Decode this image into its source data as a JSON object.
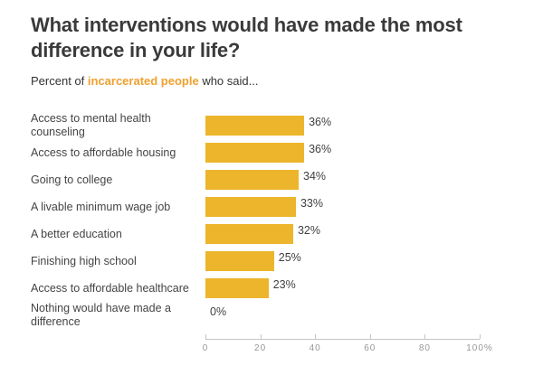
{
  "header": {
    "title": "What interventions would have made the most difference in your life?",
    "subtitle_prefix": "Percent of ",
    "subtitle_highlight": "incarcerated people",
    "subtitle_suffix": " who said..."
  },
  "colors": {
    "bar": "#ecb52c",
    "accent_text": "#efa02e",
    "title_text": "#3a3a3a"
  },
  "chart_data": {
    "type": "bar",
    "orientation": "horizontal",
    "title": "What interventions would have made the most difference in your life?",
    "subtitle": "Percent of incarcerated people who said...",
    "categories": [
      "Access to mental health counseling",
      "Access to affordable housing",
      "Going to college",
      "A livable minimum wage job",
      "A better education",
      "Finishing high school",
      "Access to affordable healthcare",
      "Nothing would have made a difference"
    ],
    "values": [
      36,
      36,
      34,
      33,
      32,
      25,
      23,
      0
    ],
    "value_labels": [
      "36%",
      "36%",
      "34%",
      "33%",
      "32%",
      "25%",
      "23%",
      "0%"
    ],
    "x_tick_labels": [
      "0",
      "20",
      "40",
      "60",
      "80",
      "100%"
    ],
    "xlim": [
      0,
      100
    ],
    "grid": false,
    "legend": false
  }
}
